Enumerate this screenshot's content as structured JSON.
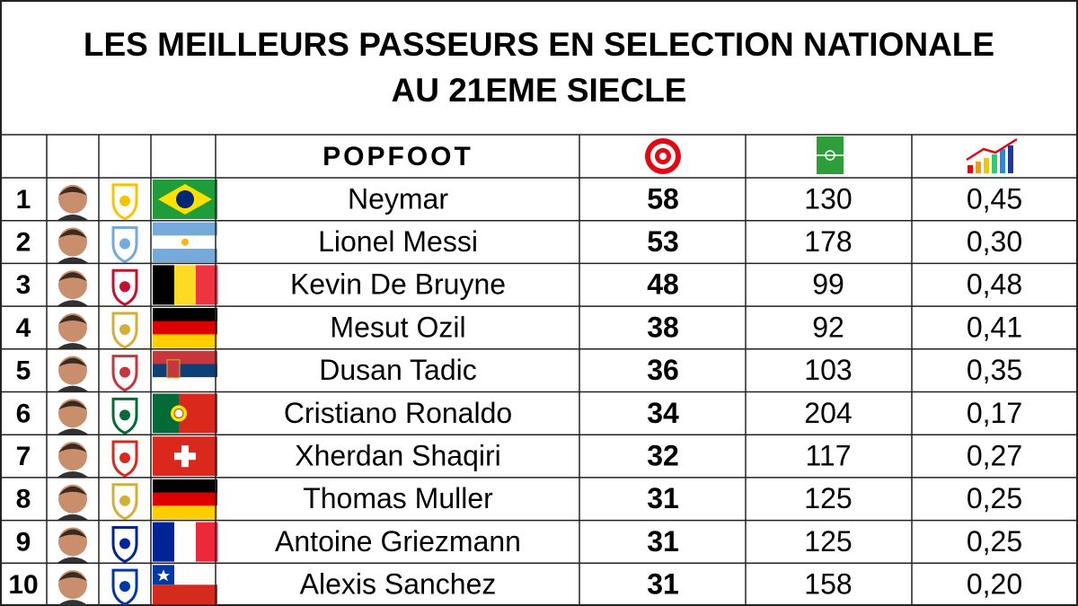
{
  "title": [
    "LES MEILLEURS PASSEURS EN SELECTION NATIONALE",
    "AU 21EME SIECLE"
  ],
  "table": {
    "header": {
      "logo": "POPFOOT"
    },
    "rows": [
      {
        "rank": 1,
        "name": "Neymar",
        "assists": 58,
        "caps": 130,
        "ratio": "0,45"
      },
      {
        "rank": 2,
        "name": "Lionel Messi",
        "assists": 53,
        "caps": 178,
        "ratio": "0,30"
      },
      {
        "rank": 3,
        "name": "Kevin De Bruyne",
        "assists": 48,
        "caps": 99,
        "ratio": "0,48"
      },
      {
        "rank": 4,
        "name": "Mesut Ozil",
        "assists": 38,
        "caps": 92,
        "ratio": "0,41"
      },
      {
        "rank": 5,
        "name": "Dusan Tadic",
        "assists": 36,
        "caps": 103,
        "ratio": "0,35"
      },
      {
        "rank": 6,
        "name": "Cristiano Ronaldo",
        "assists": 34,
        "caps": 204,
        "ratio": "0,17"
      },
      {
        "rank": 7,
        "name": "Xherdan Shaqiri",
        "assists": 32,
        "caps": 117,
        "ratio": "0,27"
      },
      {
        "rank": 8,
        "name": "Thomas Muller",
        "assists": 31,
        "caps": 125,
        "ratio": "0,25"
      },
      {
        "rank": 9,
        "name": "Antoine Griezmann",
        "assists": 31,
        "caps": 125,
        "ratio": "0,25"
      },
      {
        "rank": 10,
        "name": "Alexis Sanchez",
        "assists": 31,
        "caps": 158,
        "ratio": "0,20"
      }
    ]
  }
}
